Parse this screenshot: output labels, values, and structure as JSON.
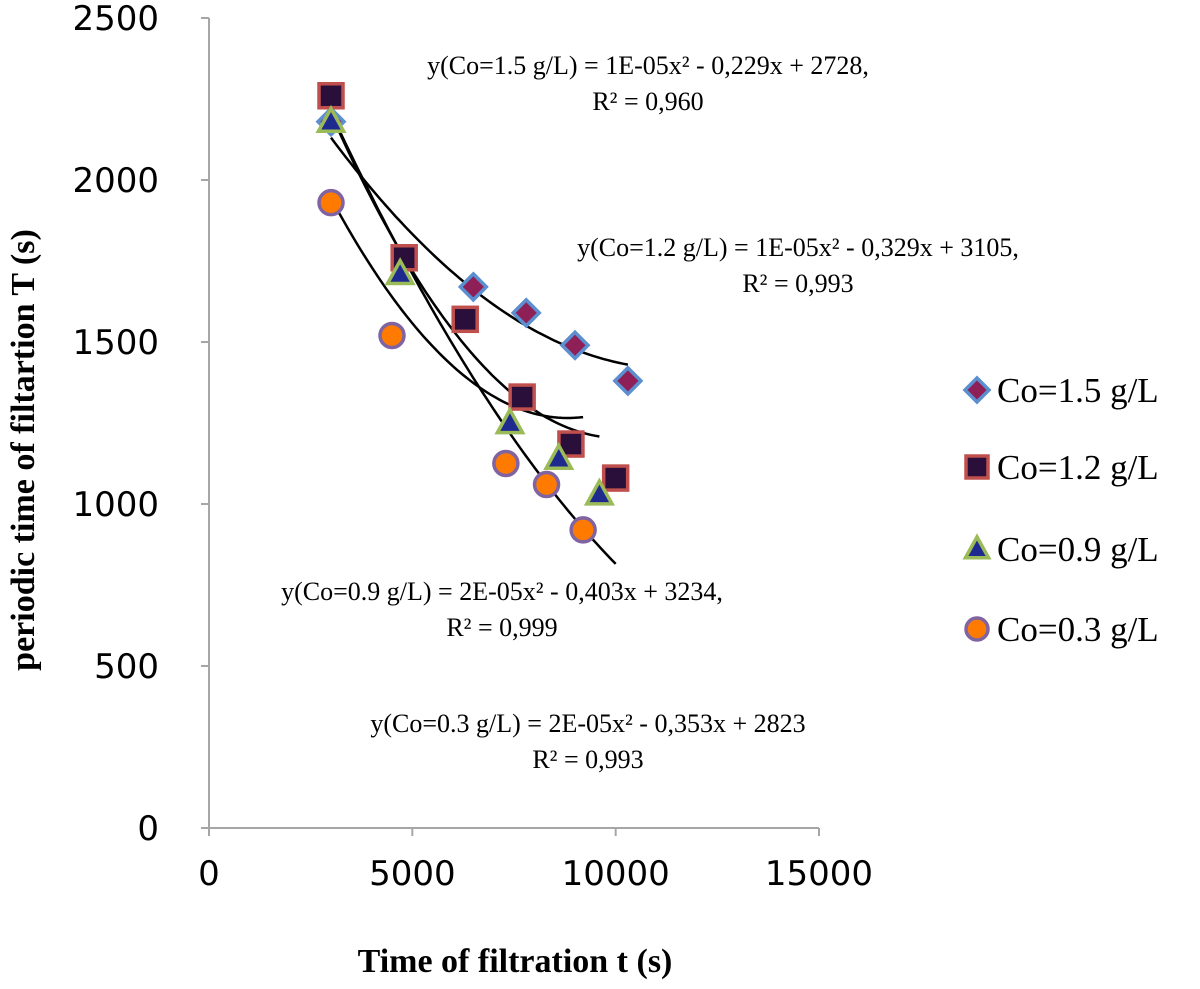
{
  "chart_data": {
    "type": "scatter",
    "xlabel": "Time of filtration t (s)",
    "ylabel": "periodic time of filtartion T (s)",
    "xlim": [
      0,
      15000
    ],
    "ylim": [
      0,
      2500
    ],
    "x_ticks": [
      "0",
      "5000",
      "10000",
      "15000"
    ],
    "y_ticks": [
      "0",
      "500",
      "1000",
      "1500",
      "2000",
      "2500"
    ],
    "grid": false,
    "legend_position": "right",
    "series": [
      {
        "name": "Co=1.5 g/L",
        "marker": "diamond",
        "fill": "#8e1f57",
        "stroke": "#5b8fd0",
        "points": [
          [
            3000,
            2180
          ],
          [
            6500,
            1670
          ],
          [
            7800,
            1590
          ],
          [
            9000,
            1490
          ],
          [
            10300,
            1380
          ]
        ],
        "fit": {
          "a": 1e-05,
          "b": -0.229,
          "c": 2728,
          "x_range": [
            3000,
            10300
          ]
        }
      },
      {
        "name": "Co=1.2 g/L",
        "marker": "square",
        "fill": "#2a0f3a",
        "stroke": "#c0504d",
        "points": [
          [
            3000,
            2260
          ],
          [
            4800,
            1760
          ],
          [
            6300,
            1570
          ],
          [
            7700,
            1330
          ],
          [
            8900,
            1185
          ],
          [
            10000,
            1080
          ]
        ],
        "fit": {
          "a": 1e-05,
          "b": -0.329,
          "c": 3105,
          "x_range": [
            3000,
            10000
          ]
        }
      },
      {
        "name": "Co=0.9 g/L",
        "marker": "triangle",
        "fill": "#1f2a8f",
        "stroke": "#9bbb59",
        "points": [
          [
            3000,
            2180
          ],
          [
            4700,
            1710
          ],
          [
            7400,
            1250
          ],
          [
            8600,
            1140
          ],
          [
            9600,
            1030
          ]
        ],
        "fit": {
          "a": 2e-05,
          "b": -0.403,
          "c": 3234,
          "x_range": [
            3000,
            9600
          ]
        }
      },
      {
        "name": "Co=0.3 g/L",
        "marker": "circle",
        "fill": "#ff7a00",
        "stroke": "#8064a2",
        "points": [
          [
            3000,
            1930
          ],
          [
            4500,
            1520
          ],
          [
            7300,
            1125
          ],
          [
            8300,
            1060
          ],
          [
            9200,
            920
          ]
        ],
        "fit": {
          "a": 2e-05,
          "b": -0.353,
          "c": 2823,
          "x_range": [
            3000,
            9200
          ]
        }
      }
    ],
    "annotations": [
      {
        "line1": "y(Co=1.5 g/L) = 1E-05x² - 0,229x + 2728,",
        "line2": "R² = 0,960"
      },
      {
        "line1": "y(Co=1.2 g/L) = 1E-05x² - 0,329x + 3105,",
        "line2": "R² = 0,993"
      },
      {
        "line1": "y(Co=0.9 g/L) = 2E-05x² - 0,403x + 3234,",
        "line2": "R² = 0,999"
      },
      {
        "line1": "y(Co=0.3 g/L) = 2E-05x² - 0,353x + 2823",
        "line2": "R² = 0,993"
      }
    ]
  }
}
